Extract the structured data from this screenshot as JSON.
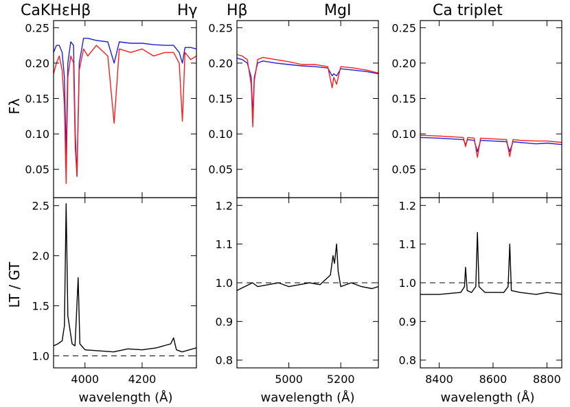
{
  "figure": {
    "columns": [
      {
        "title_left": "CaKHεHβ",
        "title_right": "Hγ"
      },
      {
        "title_left": "Hβ",
        "title_right": "MgI"
      },
      {
        "title_left": "Ca  triplet",
        "title_right": ""
      }
    ],
    "ylabel_top": "Fλ",
    "ylabel_bottom": "LT / GT",
    "xlabel": "wavelength (Å)",
    "colors": {
      "blue": "#1f1fd9",
      "red": "#ff1a1a",
      "black": "#000000"
    }
  },
  "chart_data": [
    {
      "type": "line",
      "panel": "top-left",
      "title": "CaKHεHβ   Hγ",
      "xlabel": "",
      "ylabel": "Fλ",
      "xlim": [
        3890,
        4390
      ],
      "ylim": [
        0.01,
        0.26
      ],
      "xticks": [
        4000,
        4200
      ],
      "xtick_labels": [
        "",
        ""
      ],
      "yticks": [
        0.05,
        0.1,
        0.15,
        0.2,
        0.25
      ],
      "ytick_labels": [
        "0.05",
        "0.10",
        "0.15",
        "0.20",
        "0.25"
      ],
      "series": [
        {
          "color": "#1f1fd9",
          "x": [
            3890,
            3900,
            3910,
            3920,
            3928,
            3934,
            3940,
            3950,
            3960,
            3966,
            3972,
            3980,
            3995,
            4010,
            4040,
            4080,
            4102,
            4120,
            4160,
            4200,
            4240,
            4280,
            4310,
            4330,
            4341,
            4350,
            4370,
            4390
          ],
          "y": [
            0.215,
            0.225,
            0.225,
            0.215,
            0.18,
            0.07,
            0.2,
            0.23,
            0.225,
            0.1,
            0.04,
            0.2,
            0.235,
            0.235,
            0.232,
            0.23,
            0.2,
            0.23,
            0.228,
            0.228,
            0.226,
            0.225,
            0.225,
            0.215,
            0.2,
            0.222,
            0.222,
            0.22
          ]
        },
        {
          "color": "#ff1a1a",
          "x": [
            3890,
            3900,
            3910,
            3920,
            3928,
            3934,
            3940,
            3950,
            3960,
            3966,
            3972,
            3980,
            3995,
            4010,
            4040,
            4080,
            4102,
            4120,
            4160,
            4200,
            4240,
            4280,
            4310,
            4330,
            4341,
            4350,
            4370,
            4390
          ],
          "y": [
            0.185,
            0.2,
            0.21,
            0.19,
            0.14,
            0.03,
            0.18,
            0.21,
            0.2,
            0.08,
            0.04,
            0.19,
            0.22,
            0.21,
            0.225,
            0.21,
            0.115,
            0.22,
            0.215,
            0.22,
            0.21,
            0.215,
            0.215,
            0.2,
            0.118,
            0.215,
            0.205,
            0.21
          ]
        }
      ]
    },
    {
      "type": "line",
      "panel": "top-middle",
      "title": "Hβ   MgI",
      "xlabel": "",
      "ylabel": "",
      "xlim": [
        4800,
        5345
      ],
      "ylim": [
        0.01,
        0.26
      ],
      "xticks": [
        5000,
        5200
      ],
      "xtick_labels": [
        "",
        ""
      ],
      "yticks": [
        0.05,
        0.1,
        0.15,
        0.2,
        0.25
      ],
      "ytick_labels": [
        "0.05",
        "0.10",
        "0.15",
        "0.20",
        "0.25"
      ],
      "series": [
        {
          "color": "#1f1fd9",
          "x": [
            4800,
            4820,
            4840,
            4855,
            4861,
            4867,
            4880,
            4900,
            4950,
            5000,
            5050,
            5100,
            5150,
            5167,
            5173,
            5184,
            5200,
            5250,
            5300,
            5345
          ],
          "y": [
            0.207,
            0.205,
            0.2,
            0.18,
            0.125,
            0.18,
            0.2,
            0.203,
            0.2,
            0.198,
            0.196,
            0.195,
            0.193,
            0.182,
            0.185,
            0.182,
            0.192,
            0.19,
            0.188,
            0.185
          ]
        },
        {
          "color": "#ff1a1a",
          "x": [
            4800,
            4820,
            4840,
            4855,
            4861,
            4867,
            4880,
            4900,
            4950,
            5000,
            5050,
            5100,
            5150,
            5167,
            5173,
            5184,
            5200,
            5250,
            5300,
            5345
          ],
          "y": [
            0.212,
            0.21,
            0.205,
            0.17,
            0.11,
            0.175,
            0.205,
            0.208,
            0.205,
            0.202,
            0.198,
            0.198,
            0.195,
            0.165,
            0.18,
            0.17,
            0.195,
            0.193,
            0.19,
            0.186
          ]
        }
      ]
    },
    {
      "type": "line",
      "panel": "top-right",
      "title": "Ca triplet",
      "xlabel": "",
      "ylabel": "",
      "xlim": [
        8330,
        8855
      ],
      "ylim": [
        0.01,
        0.26
      ],
      "xticks": [
        8400,
        8600,
        8800
      ],
      "xtick_labels": [
        "",
        "",
        ""
      ],
      "yticks": [
        0.05,
        0.1,
        0.15,
        0.2,
        0.25
      ],
      "ytick_labels": [
        "0.05",
        "0.10",
        "0.15",
        "0.20",
        "0.25"
      ],
      "series": [
        {
          "color": "#1f1fd9",
          "x": [
            8330,
            8400,
            8490,
            8498,
            8506,
            8530,
            8542,
            8554,
            8600,
            8650,
            8662,
            8674,
            8700,
            8760,
            8800,
            8855
          ],
          "y": [
            0.095,
            0.094,
            0.092,
            0.085,
            0.092,
            0.091,
            0.075,
            0.091,
            0.09,
            0.089,
            0.075,
            0.089,
            0.088,
            0.086,
            0.087,
            0.085
          ]
        },
        {
          "color": "#ff1a1a",
          "x": [
            8330,
            8400,
            8490,
            8498,
            8506,
            8530,
            8542,
            8554,
            8600,
            8650,
            8662,
            8674,
            8700,
            8760,
            8800,
            8855
          ],
          "y": [
            0.098,
            0.097,
            0.095,
            0.082,
            0.095,
            0.094,
            0.067,
            0.094,
            0.093,
            0.092,
            0.068,
            0.092,
            0.091,
            0.09,
            0.09,
            0.088
          ]
        }
      ]
    },
    {
      "type": "line",
      "panel": "bottom-left",
      "title": "",
      "xlabel": "wavelength (Å)",
      "ylabel": "LT / GT",
      "xlim": [
        3890,
        4390
      ],
      "ylim": [
        0.88,
        2.58
      ],
      "xticks": [
        4000,
        4200
      ],
      "xtick_labels": [
        "4000",
        "4200"
      ],
      "yticks": [
        1.0,
        1.5,
        2.0,
        2.5
      ],
      "ytick_labels": [
        "1.0",
        "1.5",
        "2.0",
        "2.5"
      ],
      "reference_line": 1.0,
      "series": [
        {
          "color": "#000000",
          "x": [
            3890,
            3905,
            3920,
            3928,
            3934,
            3940,
            3955,
            3965,
            3970,
            3976,
            3982,
            4000,
            4050,
            4100,
            4150,
            4200,
            4250,
            4300,
            4310,
            4320,
            4340,
            4390
          ],
          "y": [
            1.1,
            1.12,
            1.15,
            1.3,
            2.52,
            1.4,
            1.12,
            1.1,
            1.4,
            1.78,
            1.12,
            1.06,
            1.05,
            1.04,
            1.07,
            1.06,
            1.08,
            1.12,
            1.18,
            1.06,
            1.04,
            1.08
          ]
        }
      ]
    },
    {
      "type": "line",
      "panel": "bottom-middle",
      "title": "",
      "xlabel": "wavelength (Å)",
      "ylabel": "",
      "xlim": [
        4800,
        5345
      ],
      "ylim": [
        0.78,
        1.22
      ],
      "xticks": [
        5000,
        5200
      ],
      "xtick_labels": [
        "5000",
        "5200"
      ],
      "yticks": [
        0.8,
        0.9,
        1.0,
        1.1,
        1.2
      ],
      "ytick_labels": [
        "0.8",
        "0.9",
        "1.0",
        "1.1",
        "1.2"
      ],
      "reference_line": 1.0,
      "series": [
        {
          "color": "#000000",
          "x": [
            4800,
            4830,
            4860,
            4880,
            4920,
            4960,
            5000,
            5040,
            5080,
            5120,
            5160,
            5170,
            5176,
            5184,
            5190,
            5200,
            5240,
            5280,
            5320,
            5345
          ],
          "y": [
            0.98,
            0.99,
            1.0,
            0.99,
            0.995,
            1.0,
            0.99,
            0.995,
            1.0,
            0.995,
            1.02,
            1.07,
            1.05,
            1.1,
            1.03,
            0.99,
            1.0,
            0.99,
            0.985,
            0.99
          ]
        }
      ]
    },
    {
      "type": "line",
      "panel": "bottom-right",
      "title": "",
      "xlabel": "wavelength (Å)",
      "ylabel": "",
      "xlim": [
        8330,
        8855
      ],
      "ylim": [
        0.78,
        1.22
      ],
      "xticks": [
        8400,
        8600,
        8800
      ],
      "xtick_labels": [
        "8400",
        "8600",
        "8800"
      ],
      "yticks": [
        0.8,
        0.9,
        1.0,
        1.1,
        1.2
      ],
      "ytick_labels": [
        "0.8",
        "0.9",
        "1.0",
        "1.1",
        "1.2"
      ],
      "reference_line": 1.0,
      "series": [
        {
          "color": "#000000",
          "x": [
            8330,
            8400,
            8480,
            8494,
            8498,
            8504,
            8520,
            8536,
            8542,
            8548,
            8570,
            8600,
            8640,
            8656,
            8662,
            8668,
            8700,
            8760,
            8800,
            8855
          ],
          "y": [
            0.97,
            0.97,
            0.975,
            0.99,
            1.04,
            0.98,
            0.975,
            0.99,
            1.13,
            0.99,
            0.975,
            0.975,
            0.975,
            0.99,
            1.1,
            0.98,
            0.975,
            0.97,
            0.975,
            0.97
          ]
        }
      ]
    }
  ]
}
